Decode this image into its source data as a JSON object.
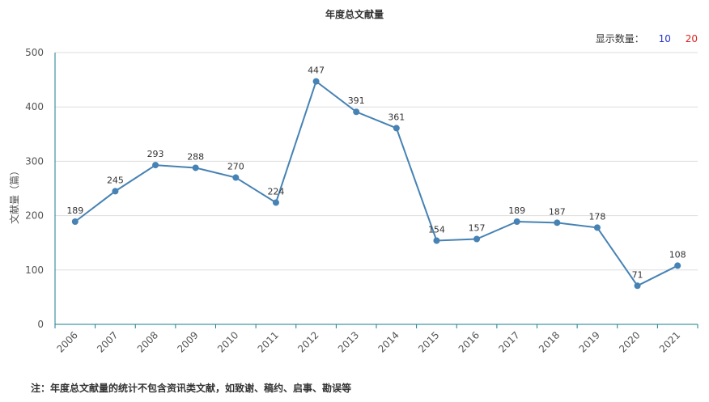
{
  "chart_data": {
    "type": "line",
    "title": "年度总文献量",
    "xlabel": "",
    "ylabel": "文献量（篇）",
    "categories": [
      "2006",
      "2007",
      "2008",
      "2009",
      "2010",
      "2011",
      "2012",
      "2013",
      "2014",
      "2015",
      "2016",
      "2017",
      "2018",
      "2019",
      "2020",
      "2021"
    ],
    "values": [
      189,
      245,
      293,
      288,
      270,
      224,
      447,
      391,
      361,
      154,
      157,
      189,
      187,
      178,
      71,
      108
    ],
    "ylim": [
      0,
      500
    ],
    "yticks": [
      0,
      100,
      200,
      300,
      400,
      500
    ],
    "grid": true,
    "line_color": "#4682b4",
    "axis_color": "#1a7c8c"
  },
  "count_selector": {
    "label": "显示数量：",
    "options": [
      "10",
      "20"
    ]
  },
  "footnote": "注：年度总文献量的统计不包含资讯类文献，如致谢、稿约、启事、勘误等"
}
